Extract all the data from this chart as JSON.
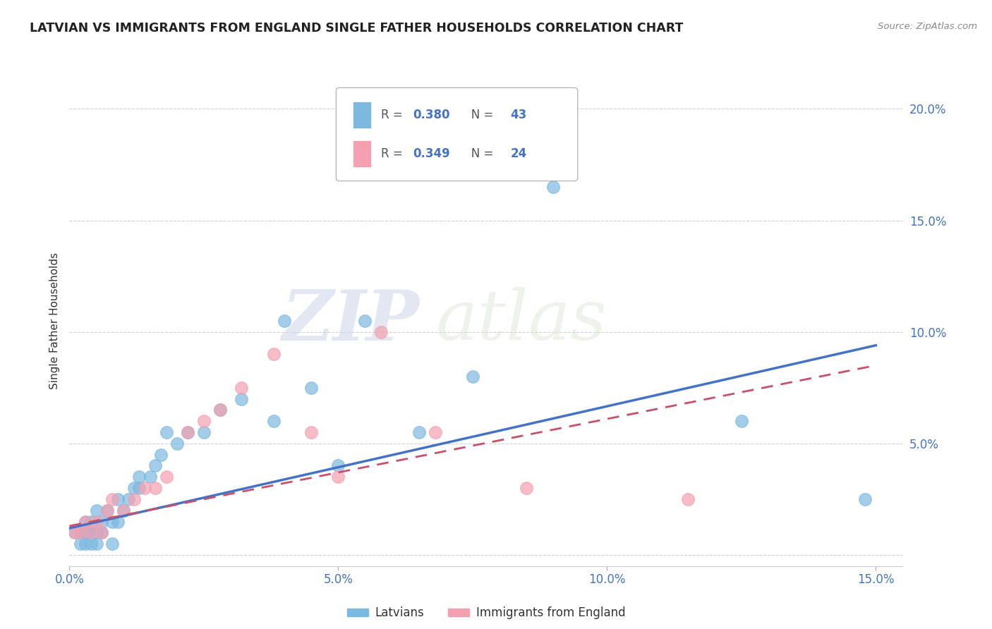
{
  "title": "LATVIAN VS IMMIGRANTS FROM ENGLAND SINGLE FATHER HOUSEHOLDS CORRELATION CHART",
  "source": "Source: ZipAtlas.com",
  "ylabel": "Single Father Households",
  "xlim": [
    0.0,
    0.155
  ],
  "ylim": [
    -0.005,
    0.215
  ],
  "yticks": [
    0.0,
    0.05,
    0.1,
    0.15,
    0.2
  ],
  "ytick_labels": [
    "",
    "5.0%",
    "10.0%",
    "15.0%",
    "20.0%"
  ],
  "xticks": [
    0.0,
    0.05,
    0.1,
    0.15
  ],
  "xtick_labels": [
    "0.0%",
    "5.0%",
    "10.0%",
    "15.0%"
  ],
  "legend1_label": "Latvians",
  "legend2_label": "Immigrants from England",
  "R1": 0.38,
  "N1": 43,
  "R2": 0.349,
  "N2": 24,
  "color_blue": "#7cb9e0",
  "color_pink": "#f4a0b0",
  "color_blue_line": "#4472c4",
  "color_pink_line": "#c9506a",
  "color_axis_labels": "#4472c4",
  "background": "#ffffff",
  "grid_color": "#cccccc",
  "watermark_zip": "ZIP",
  "watermark_atlas": "atlas",
  "latvian_x": [
    0.001,
    0.002,
    0.002,
    0.003,
    0.003,
    0.003,
    0.004,
    0.004,
    0.004,
    0.005,
    0.005,
    0.005,
    0.006,
    0.006,
    0.007,
    0.008,
    0.008,
    0.009,
    0.009,
    0.01,
    0.011,
    0.012,
    0.013,
    0.013,
    0.015,
    0.016,
    0.017,
    0.018,
    0.02,
    0.022,
    0.025,
    0.028,
    0.032,
    0.038,
    0.04,
    0.045,
    0.05,
    0.055,
    0.065,
    0.075,
    0.09,
    0.125,
    0.148
  ],
  "latvian_y": [
    0.01,
    0.005,
    0.01,
    0.005,
    0.01,
    0.015,
    0.005,
    0.01,
    0.015,
    0.005,
    0.01,
    0.02,
    0.01,
    0.015,
    0.02,
    0.005,
    0.015,
    0.015,
    0.025,
    0.02,
    0.025,
    0.03,
    0.03,
    0.035,
    0.035,
    0.04,
    0.045,
    0.055,
    0.05,
    0.055,
    0.055,
    0.065,
    0.07,
    0.06,
    0.105,
    0.075,
    0.04,
    0.105,
    0.055,
    0.08,
    0.165,
    0.06,
    0.025
  ],
  "england_x": [
    0.001,
    0.002,
    0.003,
    0.004,
    0.005,
    0.006,
    0.007,
    0.008,
    0.01,
    0.012,
    0.014,
    0.016,
    0.018,
    0.022,
    0.025,
    0.028,
    0.032,
    0.038,
    0.045,
    0.05,
    0.058,
    0.068,
    0.085,
    0.115
  ],
  "england_y": [
    0.01,
    0.01,
    0.015,
    0.01,
    0.015,
    0.01,
    0.02,
    0.025,
    0.02,
    0.025,
    0.03,
    0.03,
    0.035,
    0.055,
    0.06,
    0.065,
    0.075,
    0.09,
    0.055,
    0.035,
    0.1,
    0.055,
    0.03,
    0.025
  ],
  "trendline_blue_x0": 0.0,
  "trendline_blue_y0": 0.012,
  "trendline_blue_x1": 0.15,
  "trendline_blue_y1": 0.094,
  "trendline_pink_x0": 0.0,
  "trendline_pink_y0": 0.013,
  "trendline_pink_x1": 0.15,
  "trendline_pink_y1": 0.085
}
